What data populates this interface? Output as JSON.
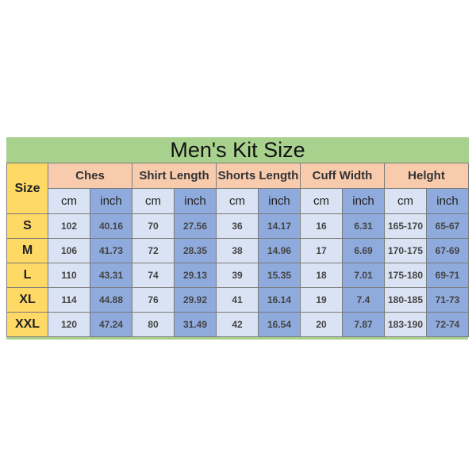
{
  "title": "Men's Kit Size",
  "size_header": "Size",
  "groups": [
    "Ches",
    "Shirt Length",
    "Shorts Length",
    "Cuff Width",
    "Helght"
  ],
  "units": {
    "cm": "cm",
    "inch": "inch"
  },
  "rows": [
    {
      "size": "S",
      "values": [
        "102",
        "40.16",
        "70",
        "27.56",
        "36",
        "14.17",
        "16",
        "6.31",
        "165-170",
        "65-67"
      ]
    },
    {
      "size": "M",
      "values": [
        "106",
        "41.73",
        "72",
        "28.35",
        "38",
        "14.96",
        "17",
        "6.69",
        "170-175",
        "67-69"
      ]
    },
    {
      "size": "L",
      "values": [
        "110",
        "43.31",
        "74",
        "29.13",
        "39",
        "15.35",
        "18",
        "7.01",
        "175-180",
        "69-71"
      ]
    },
    {
      "size": "XL",
      "values": [
        "114",
        "44.88",
        "76",
        "29.92",
        "41",
        "16.14",
        "19",
        "7.4",
        "180-185",
        "71-73"
      ]
    },
    {
      "size": "XXL",
      "values": [
        "120",
        "47.24",
        "80",
        "31.49",
        "42",
        "16.54",
        "20",
        "7.87",
        "183-190",
        "72-74"
      ]
    }
  ],
  "colors": {
    "title_bg": "#a9d18e",
    "size_bg": "#ffd966",
    "group_bg": "#f8cbad",
    "cm_bg": "#dae3f3",
    "inch_bg": "#8faadc"
  }
}
